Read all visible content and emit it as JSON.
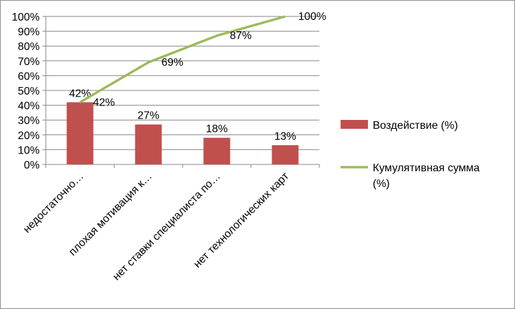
{
  "chart_data": {
    "type": "bar",
    "categories": [
      "недостаточно…",
      "плохая мотивация к…",
      "нет ставки специалиста по…",
      "нет технологических карт"
    ],
    "series": [
      {
        "name": "Воздействие (%)",
        "kind": "bar",
        "color": "#c0504d",
        "values": [
          42,
          27,
          18,
          13
        ],
        "labels": [
          "42%",
          "27%",
          "18%",
          "13%"
        ]
      },
      {
        "name": "Кумулятивная сумма (%)",
        "kind": "line",
        "color": "#9bbb59",
        "values": [
          42,
          69,
          87,
          100
        ],
        "labels": [
          "42%",
          "69%",
          "87%",
          "100%"
        ]
      }
    ],
    "yticks": [
      "0%",
      "10%",
      "20%",
      "30%",
      "40%",
      "50%",
      "60%",
      "70%",
      "80%",
      "90%",
      "100%"
    ],
    "ylim": [
      0,
      100
    ],
    "grid": true,
    "legend_position": "right",
    "legend_lines": [
      [
        "Воздействие (%)"
      ],
      [
        "Кумулятивная сумма",
        "(%)"
      ]
    ]
  }
}
